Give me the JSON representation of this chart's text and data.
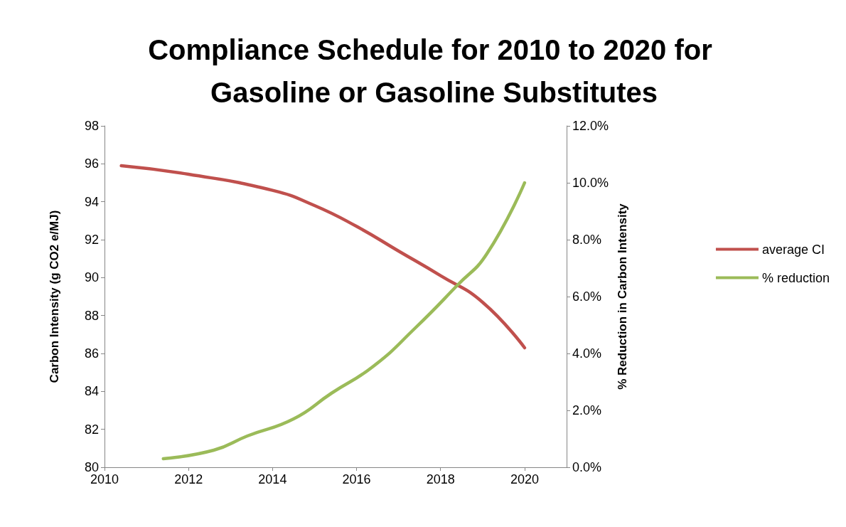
{
  "chart_data": {
    "type": "line",
    "title": "Compliance Schedule for 2010 to 2020 for Gasoline or Gasoline Substitutes",
    "ylabel": "Carbon Intensity (g CO2 e/MJ)",
    "y2label": "% Reduction in Carbon Intensity",
    "series": [
      {
        "name": "average CI",
        "color": "#c0504d",
        "x": [
          2010.4,
          2012,
          2014,
          2015,
          2016,
          2017,
          2018,
          2019,
          2020
        ],
        "values": [
          95.9,
          95.45,
          94.6,
          93.8,
          92.7,
          91.4,
          90.1,
          88.7,
          86.3
        ]
      },
      {
        "name": "% reduction",
        "color": "#9bbb59",
        "axis": "y2",
        "x": [
          2011.4,
          2012.6,
          2013.4,
          2014.5,
          2015.4,
          2016.4,
          2017.4,
          2018.4,
          2019.1,
          2020
        ],
        "values": [
          0.3,
          0.6,
          1.1,
          1.7,
          2.6,
          3.55,
          4.9,
          6.4,
          7.5,
          10.0
        ]
      }
    ],
    "xlim": [
      2010,
      2021
    ],
    "xticks": [
      2010,
      2012,
      2014,
      2016,
      2018,
      2020
    ],
    "ylim": [
      80,
      98
    ],
    "yticks": [
      80,
      82,
      84,
      86,
      88,
      90,
      92,
      94,
      96,
      98
    ],
    "y2lim": [
      0,
      12
    ],
    "y2ticks": [
      {
        "value": 0,
        "label": "0.0%"
      },
      {
        "value": 2,
        "label": "2.0%"
      },
      {
        "value": 4,
        "label": "4.0%"
      },
      {
        "value": 6,
        "label": "6.0%"
      },
      {
        "value": 8,
        "label": "8.0%"
      },
      {
        "value": 10,
        "label": "10.0%"
      },
      {
        "value": 12,
        "label": "12.0%"
      }
    ],
    "grid": false,
    "legend": "right",
    "marker": "none",
    "line_style": "solid"
  }
}
